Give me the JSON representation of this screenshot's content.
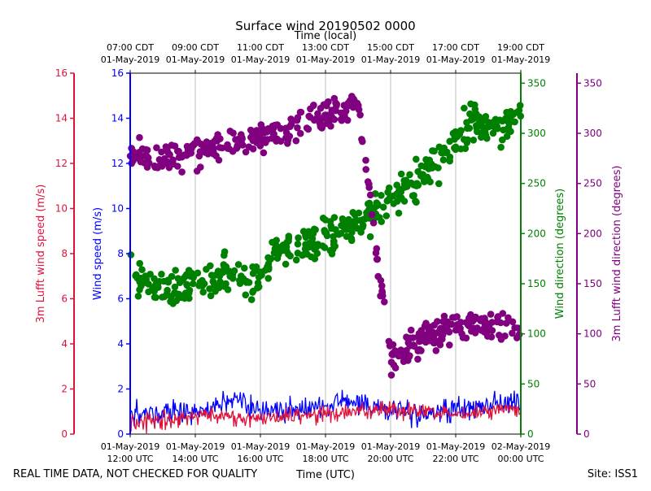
{
  "chart_data": {
    "type": "line",
    "title": "Surface wind 20190502 0000",
    "top_axis_label": "Time (local)",
    "bottom_axis_label": "Time (UTC)",
    "footer_left": "REAL TIME DATA, NOT CHECKED FOR QUALITY",
    "footer_right": "Site: ISS1",
    "x_range_hours_utc": [
      12,
      24
    ],
    "bottom_ticks": [
      {
        "hour": 12,
        "line1": "01-May-2019",
        "line2": "12:00 UTC"
      },
      {
        "hour": 14,
        "line1": "01-May-2019",
        "line2": "14:00 UTC"
      },
      {
        "hour": 16,
        "line1": "01-May-2019",
        "line2": "16:00 UTC"
      },
      {
        "hour": 18,
        "line1": "01-May-2019",
        "line2": "18:00 UTC"
      },
      {
        "hour": 20,
        "line1": "01-May-2019",
        "line2": "20:00 UTC"
      },
      {
        "hour": 22,
        "line1": "01-May-2019",
        "line2": "22:00 UTC"
      },
      {
        "hour": 24,
        "line1": "02-May-2019",
        "line2": "00:00 UTC"
      }
    ],
    "top_ticks": [
      {
        "hour": 12,
        "line1": "07:00 CDT",
        "line2": "01-May-2019"
      },
      {
        "hour": 14,
        "line1": "09:00 CDT",
        "line2": "01-May-2019"
      },
      {
        "hour": 16,
        "line1": "11:00 CDT",
        "line2": "01-May-2019"
      },
      {
        "hour": 18,
        "line1": "13:00 CDT",
        "line2": "01-May-2019"
      },
      {
        "hour": 20,
        "line1": "15:00 CDT",
        "line2": "01-May-2019"
      },
      {
        "hour": 22,
        "line1": "17:00 CDT",
        "line2": "01-May-2019"
      },
      {
        "hour": 24,
        "line1": "19:00 CDT",
        "line2": "01-May-2019"
      }
    ],
    "axes": {
      "lufft_speed": {
        "label": "3m Lufft wind speed (m/s)",
        "range": [
          0,
          16
        ],
        "ticks": [
          0,
          2,
          4,
          6,
          8,
          10,
          12,
          14,
          16
        ],
        "color": "#dc143c"
      },
      "wind_speed": {
        "label": "Wind speed (m/s)",
        "range": [
          0,
          16
        ],
        "ticks": [
          0,
          2,
          4,
          6,
          8,
          10,
          12,
          14,
          16
        ],
        "color": "#0000ff"
      },
      "wind_dir": {
        "label": "Wind direction (degrees)",
        "range": [
          0,
          360
        ],
        "ticks": [
          0,
          50,
          100,
          150,
          200,
          250,
          300,
          350
        ],
        "color": "#008000"
      },
      "lufft_dir": {
        "label": "3m Lufft wind direction (degrees)",
        "range": [
          0,
          360
        ],
        "ticks": [
          0,
          50,
          100,
          150,
          200,
          250,
          300,
          350
        ],
        "color": "#800080"
      }
    },
    "series": [
      {
        "name": "Wind speed",
        "axis": "wind_speed",
        "style": "line",
        "color": "#0000ff",
        "trend": [
          [
            12,
            0.9
          ],
          [
            14,
            1.0
          ],
          [
            15.3,
            1.5
          ],
          [
            16,
            1.0
          ],
          [
            17.5,
            1.1
          ],
          [
            18.5,
            1.4
          ],
          [
            20,
            1.1
          ],
          [
            21,
            0.9
          ],
          [
            22,
            1.0
          ],
          [
            23,
            1.3
          ],
          [
            24,
            1.4
          ]
        ],
        "noise": 0.8,
        "samples": 480
      },
      {
        "name": "3m Lufft wind speed",
        "axis": "lufft_speed",
        "style": "line",
        "color": "#dc143c",
        "trend": [
          [
            12,
            0.5
          ],
          [
            14,
            0.8
          ],
          [
            16,
            0.7
          ],
          [
            18,
            0.9
          ],
          [
            20,
            1.1
          ],
          [
            22,
            0.9
          ],
          [
            24,
            1.1
          ]
        ],
        "noise": 0.6,
        "samples": 480
      },
      {
        "name": "Wind direction",
        "axis": "wind_dir",
        "style": "scatter",
        "color": "#008000",
        "trend": [
          [
            12,
            160
          ],
          [
            13,
            145
          ],
          [
            14,
            148
          ],
          [
            15,
            165
          ],
          [
            16,
            150
          ],
          [
            16.5,
            185
          ],
          [
            18,
            195
          ],
          [
            19,
            210
          ],
          [
            20,
            235
          ],
          [
            20.5,
            245
          ],
          [
            21.5,
            275
          ],
          [
            22.5,
            310
          ],
          [
            23.5,
            305
          ],
          [
            24,
            320
          ]
        ],
        "spread": 28,
        "samples": 450
      },
      {
        "name": "3m Lufft wind direction",
        "axis": "lufft_dir",
        "style": "scatter",
        "color": "#800080",
        "trend": [
          [
            12,
            280
          ],
          [
            13,
            278
          ],
          [
            14,
            280
          ],
          [
            15,
            290
          ],
          [
            16,
            295
          ],
          [
            17,
            305
          ],
          [
            18,
            320
          ],
          [
            19,
            330
          ],
          [
            20,
            75
          ],
          [
            21,
            95
          ],
          [
            22,
            105
          ],
          [
            23,
            110
          ],
          [
            24,
            100
          ]
        ],
        "spread": 22,
        "samples": 420
      }
    ]
  }
}
